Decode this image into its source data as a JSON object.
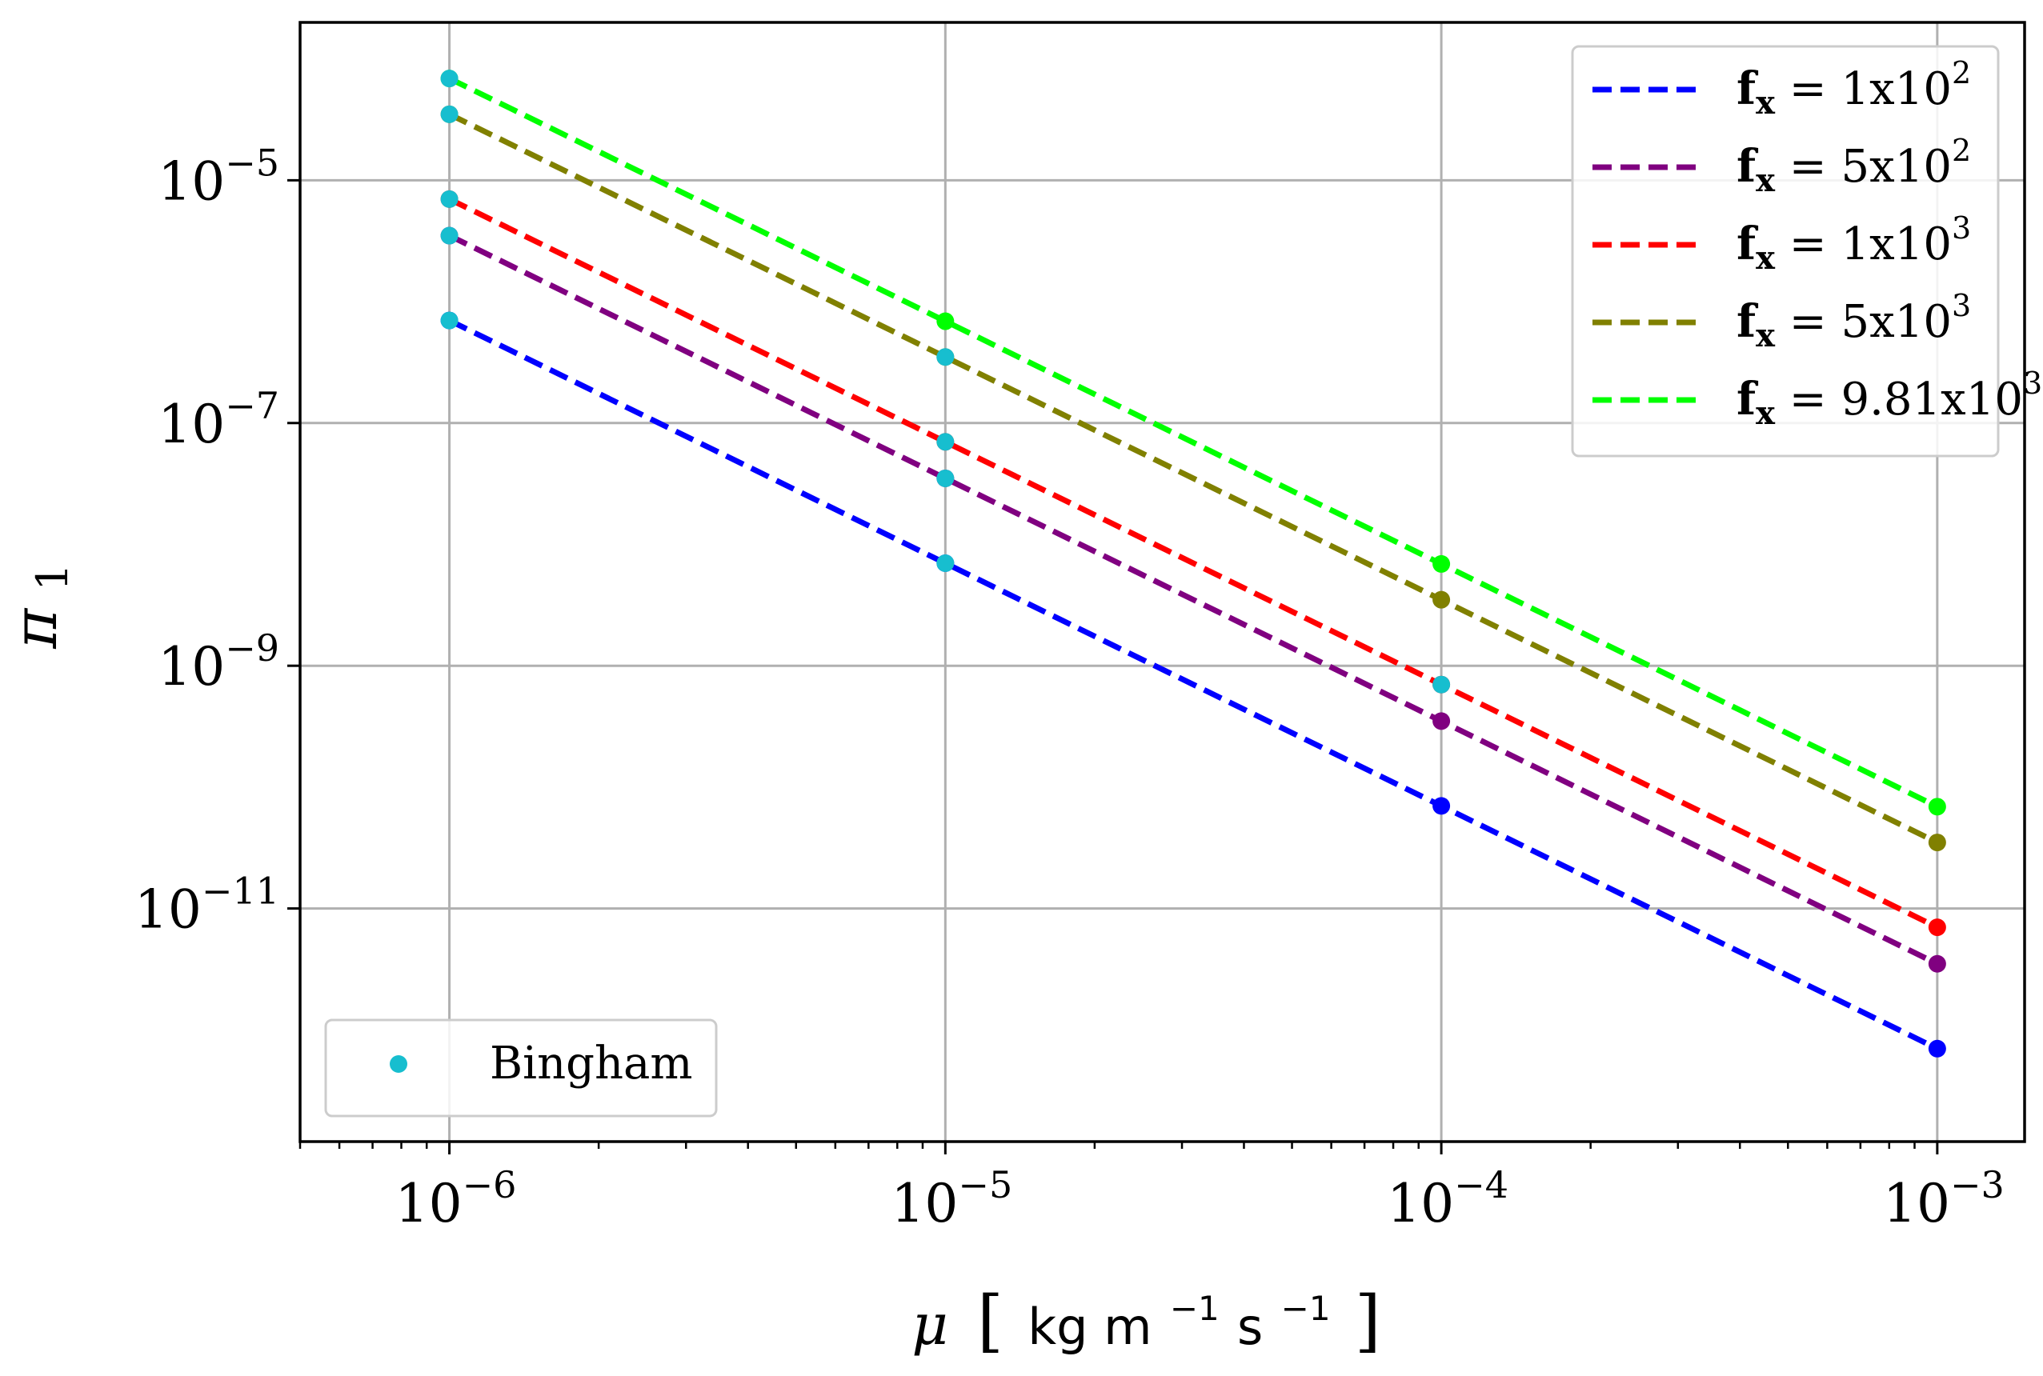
{
  "chart_data": {
    "type": "line",
    "x_scale": "log",
    "y_scale": "log",
    "xlim": [
      5e-07,
      0.0015
    ],
    "ylim": [
      1.2e-13,
      0.0002
    ],
    "grid": true,
    "x_ticks": [
      {
        "value": 1e-06,
        "base": "10",
        "exp": "−6"
      },
      {
        "value": 1e-05,
        "base": "10",
        "exp": "−5"
      },
      {
        "value": 0.0001,
        "base": "10",
        "exp": "−4"
      },
      {
        "value": 0.001,
        "base": "10",
        "exp": "−3"
      }
    ],
    "y_ticks": [
      {
        "value": 1e-05,
        "base": "10",
        "exp": "−5"
      },
      {
        "value": 1e-07,
        "base": "10",
        "exp": "−7"
      },
      {
        "value": 1e-09,
        "base": "10",
        "exp": "−9"
      },
      {
        "value": 1e-11,
        "base": "10",
        "exp": "−11"
      }
    ],
    "xlabel": {
      "symbol": "μ",
      "unit": "kg m",
      "exp1": "−1",
      "unit2": "s",
      "exp2": "−1"
    },
    "ylabel": {
      "symbol": "π",
      "sub": "1"
    },
    "x": [
      1e-06,
      1e-05,
      0.0001,
      0.001
    ],
    "series": [
      {
        "name": "f",
        "sub": "x",
        "value_text": " = 1x10",
        "exp": "2",
        "color": "#0000ff",
        "values": [
          7e-07,
          7e-09,
          7e-11,
          7e-13
        ]
      },
      {
        "name": "f",
        "sub": "x",
        "value_text": " = 5x10",
        "exp": "2",
        "color": "#800080",
        "values": [
          3.5e-06,
          3.5e-08,
          3.5e-10,
          3.5e-12
        ]
      },
      {
        "name": "f",
        "sub": "x",
        "value_text": " = 1x10",
        "exp": "3",
        "color": "#ff0000",
        "values": [
          7e-06,
          7e-08,
          7e-10,
          7e-12
        ]
      },
      {
        "name": "f",
        "sub": "x",
        "value_text": " = 5x10",
        "exp": "3",
        "color": "#808000",
        "values": [
          3.5e-05,
          3.5e-07,
          3.5e-09,
          3.5e-11
        ]
      },
      {
        "name": "f",
        "sub": "x",
        "value_text": " = 9.81x10",
        "exp": "3",
        "color": "#00ff00",
        "values": [
          6.9e-05,
          6.9e-07,
          6.9e-09,
          6.9e-11
        ]
      }
    ],
    "bingham": {
      "name": "Bingham",
      "color": "#17becf",
      "points": [
        {
          "series": 0,
          "x_index": 0
        },
        {
          "series": 1,
          "x_index": 0
        },
        {
          "series": 2,
          "x_index": 0
        },
        {
          "series": 3,
          "x_index": 0
        },
        {
          "series": 4,
          "x_index": 0
        },
        {
          "series": 0,
          "x_index": 1
        },
        {
          "series": 1,
          "x_index": 1
        },
        {
          "series": 2,
          "x_index": 1
        },
        {
          "series": 3,
          "x_index": 1
        },
        {
          "series": 2,
          "x_index": 2
        }
      ]
    },
    "legend_position": "top-right",
    "bingham_legend_position": "lower-left"
  }
}
